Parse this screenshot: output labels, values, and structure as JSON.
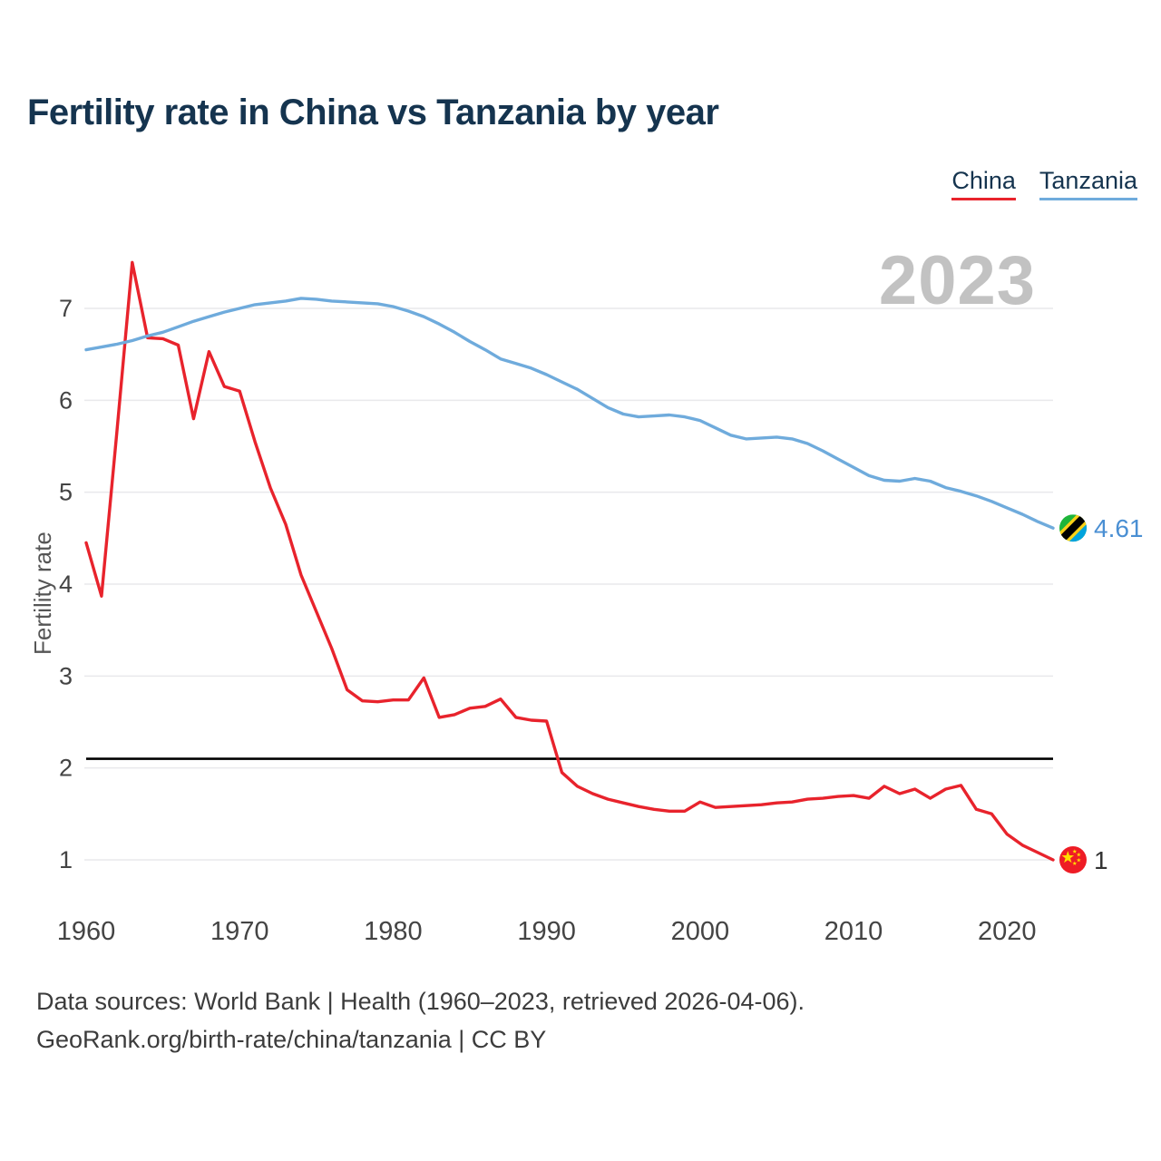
{
  "footer": {
    "line1": "Data sources: World Bank | Health (1960–2023, retrieved 2026-04-06).",
    "line2": "GeoRank.org/birth-rate/china/tanzania | CC BY"
  },
  "chart_data": {
    "type": "line",
    "title": "Fertility rate in China vs Tanzania by year",
    "xlabel": "",
    "ylabel": "Fertility rate",
    "watermark": "2023",
    "x_start": 1960,
    "x_end": 2023,
    "x_step": 1,
    "x_ticks": [
      1960,
      1970,
      1980,
      1990,
      2000,
      2010,
      2020
    ],
    "y_ticks": [
      1,
      2,
      3,
      4,
      5,
      6,
      7
    ],
    "ylim": [
      0.75,
      7.6
    ],
    "grid": "horizontal",
    "legend_position": "top-right",
    "reference_line": {
      "value": 2.1,
      "color": "#000000"
    },
    "series": [
      {
        "name": "China",
        "color": "#e8232c",
        "end_label": "1",
        "end_label_color": "#333333",
        "flag": "china",
        "values": [
          4.45,
          3.87,
          5.65,
          7.5,
          6.68,
          6.67,
          6.6,
          5.8,
          6.53,
          6.15,
          6.1,
          5.55,
          5.05,
          4.65,
          4.1,
          3.7,
          3.3,
          2.85,
          2.73,
          2.72,
          2.74,
          2.74,
          2.98,
          2.55,
          2.58,
          2.65,
          2.67,
          2.75,
          2.55,
          2.52,
          2.51,
          1.95,
          1.8,
          1.72,
          1.66,
          1.62,
          1.58,
          1.55,
          1.53,
          1.53,
          1.63,
          1.57,
          1.58,
          1.59,
          1.6,
          1.62,
          1.63,
          1.66,
          1.67,
          1.69,
          1.7,
          1.67,
          1.8,
          1.72,
          1.77,
          1.67,
          1.77,
          1.81,
          1.55,
          1.5,
          1.28,
          1.16,
          1.08,
          1.0
        ]
      },
      {
        "name": "Tanzania",
        "color": "#6fabdc",
        "end_label": "4.61",
        "end_label_color": "#4a8fd3",
        "flag": "tanzania",
        "values": [
          6.55,
          6.58,
          6.61,
          6.65,
          6.7,
          6.74,
          6.8,
          6.86,
          6.91,
          6.96,
          7.0,
          7.04,
          7.06,
          7.08,
          7.11,
          7.1,
          7.08,
          7.07,
          7.06,
          7.05,
          7.02,
          6.97,
          6.91,
          6.83,
          6.74,
          6.64,
          6.55,
          6.45,
          6.4,
          6.35,
          6.28,
          6.2,
          6.12,
          6.02,
          5.92,
          5.85,
          5.82,
          5.83,
          5.84,
          5.82,
          5.78,
          5.7,
          5.62,
          5.58,
          5.59,
          5.6,
          5.58,
          5.53,
          5.45,
          5.36,
          5.27,
          5.18,
          5.13,
          5.12,
          5.15,
          5.12,
          5.05,
          5.01,
          4.96,
          4.9,
          4.83,
          4.76,
          4.68,
          4.61
        ]
      }
    ]
  }
}
